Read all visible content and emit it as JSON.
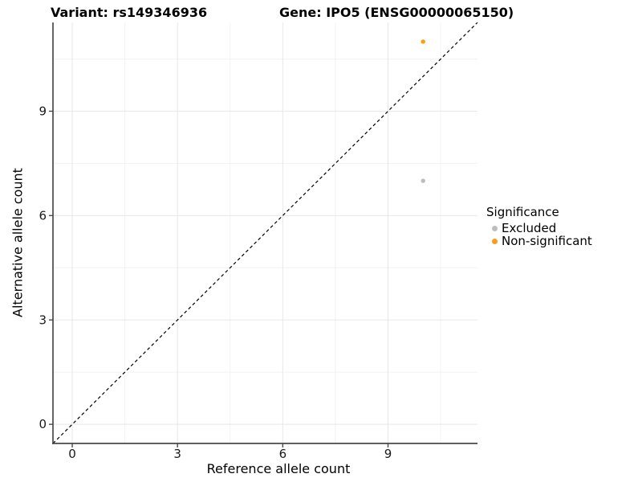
{
  "titles": {
    "variant": "Variant: rs149346936",
    "gene": "Gene: IPO5 (ENSG00000065150)"
  },
  "legend": {
    "title": "Significance",
    "items": [
      {
        "label": "Excluded",
        "color": "#BDBDBD"
      },
      {
        "label": "Non-significant",
        "color": "#FB9E15"
      }
    ]
  },
  "chart_data": {
    "type": "scatter",
    "xlabel": "Reference allele count",
    "ylabel": "Alternative allele count",
    "xlim": [
      -0.55,
      11.55
    ],
    "ylim": [
      -0.55,
      11.55
    ],
    "x_ticks": [
      0,
      3,
      6,
      9
    ],
    "y_ticks": [
      0,
      3,
      6,
      9
    ],
    "minor_grid": [
      1.5,
      4.5,
      7.5,
      10.5
    ],
    "grid": "major+minor",
    "legend_position": "right",
    "identity_line": {
      "slope": 1,
      "intercept": 0,
      "style": "dashed",
      "color": "#000000"
    },
    "series": [
      {
        "name": "Excluded",
        "color": "#BDBDBD",
        "points": [
          {
            "x": 10,
            "y": 7
          }
        ]
      },
      {
        "name": "Non-significant",
        "color": "#FB9E15",
        "points": [
          {
            "x": 10,
            "y": 11
          }
        ]
      }
    ],
    "colors": {
      "grid_major": "#E7E7E7",
      "grid_minor": "#F2F2F2",
      "axis_line": "#4A4A4A",
      "tick_label": "#1A1A1A"
    }
  }
}
